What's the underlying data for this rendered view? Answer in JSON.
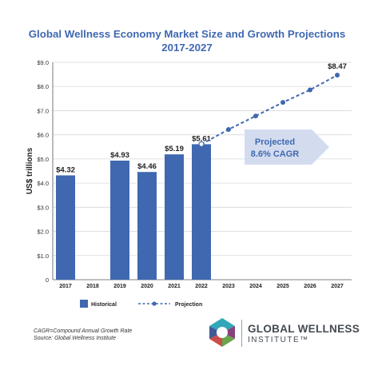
{
  "title": {
    "line1": "Global Wellness Economy Market Size and Growth Projections",
    "line2": "2017-2027"
  },
  "chart_data": {
    "type": "bar",
    "ylabel": "US$ trillions",
    "xlabel": "",
    "ylim": [
      0,
      9
    ],
    "grid": true,
    "y_ticks": [
      "0",
      "$1.0",
      "$2.0",
      "$3.0",
      "$4.0",
      "$5.0",
      "$6.0",
      "$7.0",
      "$8.0",
      "$9.0"
    ],
    "categories": [
      "2017",
      "2018",
      "2019",
      "2020",
      "2021",
      "2022",
      "2023",
      "2024",
      "2025",
      "2026",
      "2027"
    ],
    "series": [
      {
        "name": "Historical",
        "kind": "bar",
        "color": "#3f68b0",
        "values": [
          4.32,
          null,
          4.93,
          4.46,
          5.19,
          5.61,
          null,
          null,
          null,
          null,
          null
        ],
        "labels": [
          "$4.32",
          null,
          "$4.93",
          "$4.46",
          "$5.19",
          "$5.61",
          null,
          null,
          null,
          null,
          null
        ]
      },
      {
        "name": "Projection",
        "kind": "line",
        "color": "#3f68b0",
        "values": [
          null,
          null,
          null,
          null,
          null,
          5.61,
          6.22,
          6.78,
          7.34,
          7.86,
          8.47
        ],
        "labels": [
          null,
          null,
          null,
          null,
          null,
          null,
          null,
          null,
          null,
          null,
          "$8.47"
        ]
      }
    ],
    "legend": {
      "position": "bottom",
      "historical": "Historical",
      "projection": "Projection"
    },
    "annotation": {
      "line1": "Projected",
      "line2": "8.6% CAGR",
      "fill": "#d3dcef",
      "text_color": "#3f68b0"
    }
  },
  "footnote": {
    "line1": "CAGR=Compound Annual Growth Rate",
    "line2": "Source: Global Wellness Institute"
  },
  "logo": {
    "line1": "GLOBAL WELLNESS",
    "line2": "INSTITUTE™",
    "colors": [
      "#1d9cb0",
      "#7a2c6e",
      "#5a9a3a",
      "#c53a33",
      "#2a4a8a"
    ]
  }
}
